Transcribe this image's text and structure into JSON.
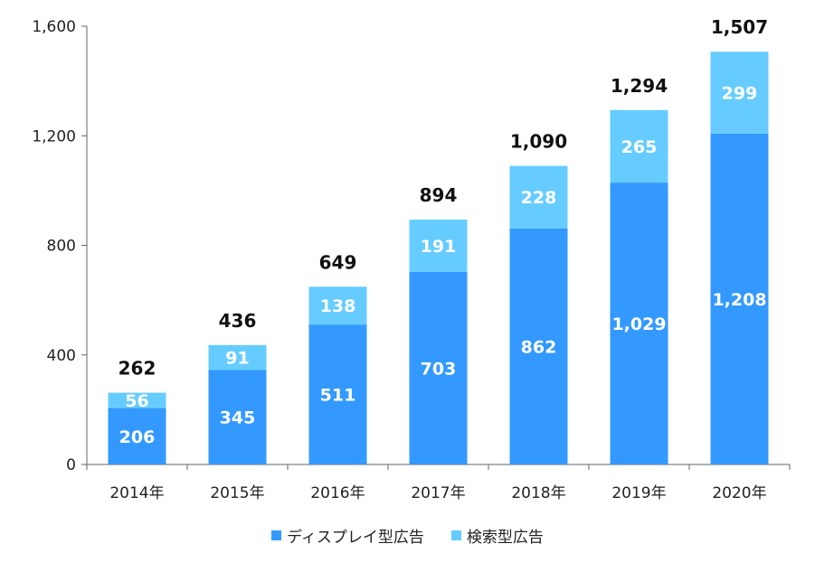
{
  "chart_data": {
    "type": "bar",
    "stacked": true,
    "categories": [
      "2014年",
      "2015年",
      "2016年",
      "2017年",
      "2018年",
      "2019年",
      "2020年"
    ],
    "series": [
      {
        "name": "ディスプレイ型広告",
        "values": [
          206,
          345,
          511,
          703,
          862,
          1029,
          1208
        ],
        "color": "#3399ff",
        "value_labels": [
          "206",
          "345",
          "511",
          "703",
          "862",
          "1,029",
          "1,208"
        ]
      },
      {
        "name": "検索型広告",
        "values": [
          56,
          91,
          138,
          191,
          228,
          265,
          299
        ],
        "color": "#66ccff",
        "value_labels": [
          "56",
          "91",
          "138",
          "191",
          "228",
          "265",
          "299"
        ]
      }
    ],
    "totals": [
      262,
      436,
      649,
      894,
      1090,
      1294,
      1507
    ],
    "total_labels": [
      "262",
      "436",
      "649",
      "894",
      "1,090",
      "1,294",
      "1,507"
    ],
    "yticks": [
      0,
      400,
      800,
      1200,
      1600
    ],
    "ytick_labels": [
      "0",
      "400",
      "800",
      "1,200",
      "1,600"
    ],
    "ylim": [
      0,
      1600
    ],
    "legend_position": "bottom",
    "grid": false
  }
}
